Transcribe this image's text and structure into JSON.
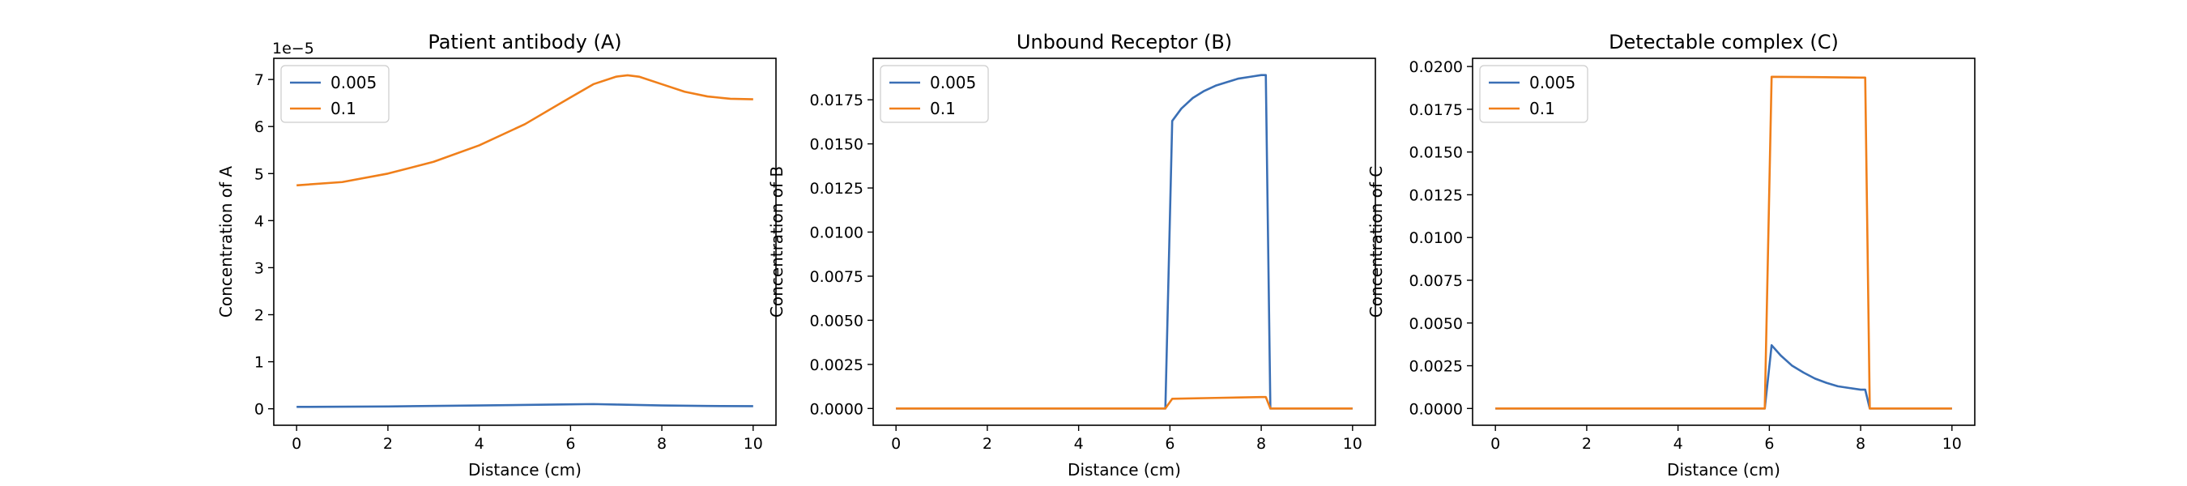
{
  "chart_data": [
    {
      "type": "line",
      "title": "Patient antibody (A)",
      "xlabel": "Distance (cm)",
      "ylabel": "Concentration of A",
      "scale_label": "1e−5",
      "xlim": [
        -0.5,
        10.5
      ],
      "ylim": [
        -0.35,
        7.45
      ],
      "xticks": [
        0,
        2,
        4,
        6,
        8,
        10
      ],
      "xtick_labels": [
        "0",
        "2",
        "4",
        "6",
        "8",
        "10"
      ],
      "yticks": [
        0,
        1,
        2,
        3,
        4,
        5,
        6,
        7
      ],
      "ytick_labels": [
        "0",
        "1",
        "2",
        "3",
        "4",
        "5",
        "6",
        "7"
      ],
      "legend": "upper-left",
      "series": [
        {
          "name": "0.005",
          "color": "#3a6fb5",
          "x": [
            0,
            2,
            4,
            6,
            6.5,
            7,
            8,
            9,
            10
          ],
          "y": [
            0.04,
            0.05,
            0.07,
            0.095,
            0.1,
            0.09,
            0.07,
            0.06,
            0.055
          ]
        },
        {
          "name": "0.1",
          "color": "#f07f1a",
          "x": [
            0,
            1,
            2,
            3,
            4,
            5,
            6,
            6.5,
            7,
            7.25,
            7.5,
            8,
            8.5,
            9,
            9.5,
            10
          ],
          "y": [
            4.75,
            4.82,
            5.0,
            5.25,
            5.6,
            6.05,
            6.62,
            6.9,
            7.06,
            7.09,
            7.06,
            6.9,
            6.74,
            6.64,
            6.59,
            6.58
          ]
        }
      ]
    },
    {
      "type": "line",
      "title": "Unbound Receptor (B)",
      "xlabel": "Distance (cm)",
      "ylabel": "Concentration of B",
      "xlim": [
        -0.5,
        10.5
      ],
      "ylim": [
        -0.00095,
        0.01985
      ],
      "xticks": [
        0,
        2,
        4,
        6,
        8,
        10
      ],
      "xtick_labels": [
        "0",
        "2",
        "4",
        "6",
        "8",
        "10"
      ],
      "yticks": [
        0,
        0.0025,
        0.005,
        0.0075,
        0.01,
        0.0125,
        0.015,
        0.0175
      ],
      "ytick_labels": [
        "0.0000",
        "0.0025",
        "0.0050",
        "0.0075",
        "0.0100",
        "0.0125",
        "0.0150",
        "0.0175"
      ],
      "legend": "upper-left",
      "series": [
        {
          "name": "0.005",
          "color": "#3a6fb5",
          "x": [
            0,
            5.9,
            6.05,
            6.25,
            6.5,
            6.75,
            7,
            7.25,
            7.5,
            7.75,
            8.0,
            8.1,
            8.2,
            10
          ],
          "y": [
            0,
            0,
            0.0163,
            0.017,
            0.0176,
            0.018,
            0.0183,
            0.0185,
            0.0187,
            0.0188,
            0.0189,
            0.0189,
            0,
            0
          ]
        },
        {
          "name": "0.1",
          "color": "#f07f1a",
          "x": [
            0,
            5.9,
            6.05,
            7,
            8.0,
            8.1,
            8.2,
            10
          ],
          "y": [
            0,
            0,
            0.00055,
            0.0006,
            0.00065,
            0.00065,
            0,
            0
          ]
        }
      ]
    },
    {
      "type": "line",
      "title": "Detectable complex (C)",
      "xlabel": "Distance (cm)",
      "ylabel": "Concentration of C",
      "xlim": [
        -0.5,
        10.5
      ],
      "ylim": [
        -0.00098,
        0.02048
      ],
      "xticks": [
        0,
        2,
        4,
        6,
        8,
        10
      ],
      "xtick_labels": [
        "0",
        "2",
        "4",
        "6",
        "8",
        "10"
      ],
      "yticks": [
        0,
        0.0025,
        0.005,
        0.0075,
        0.01,
        0.0125,
        0.015,
        0.0175,
        0.02
      ],
      "ytick_labels": [
        "0.0000",
        "0.0025",
        "0.0050",
        "0.0075",
        "0.0100",
        "0.0125",
        "0.0150",
        "0.0175",
        "0.0200"
      ],
      "legend": "upper-left",
      "series": [
        {
          "name": "0.005",
          "color": "#3a6fb5",
          "x": [
            0,
            5.9,
            6.05,
            6.25,
            6.5,
            6.75,
            7,
            7.25,
            7.5,
            7.75,
            8.0,
            8.1,
            8.2,
            10
          ],
          "y": [
            0,
            0,
            0.0037,
            0.0031,
            0.0025,
            0.0021,
            0.00175,
            0.0015,
            0.0013,
            0.0012,
            0.0011,
            0.0011,
            0,
            0
          ]
        },
        {
          "name": "0.1",
          "color": "#f07f1a",
          "x": [
            0,
            5.9,
            6.05,
            7,
            8.0,
            8.1,
            8.2,
            10
          ],
          "y": [
            0,
            0,
            0.0194,
            0.01938,
            0.01935,
            0.01935,
            0,
            0
          ]
        }
      ]
    }
  ]
}
